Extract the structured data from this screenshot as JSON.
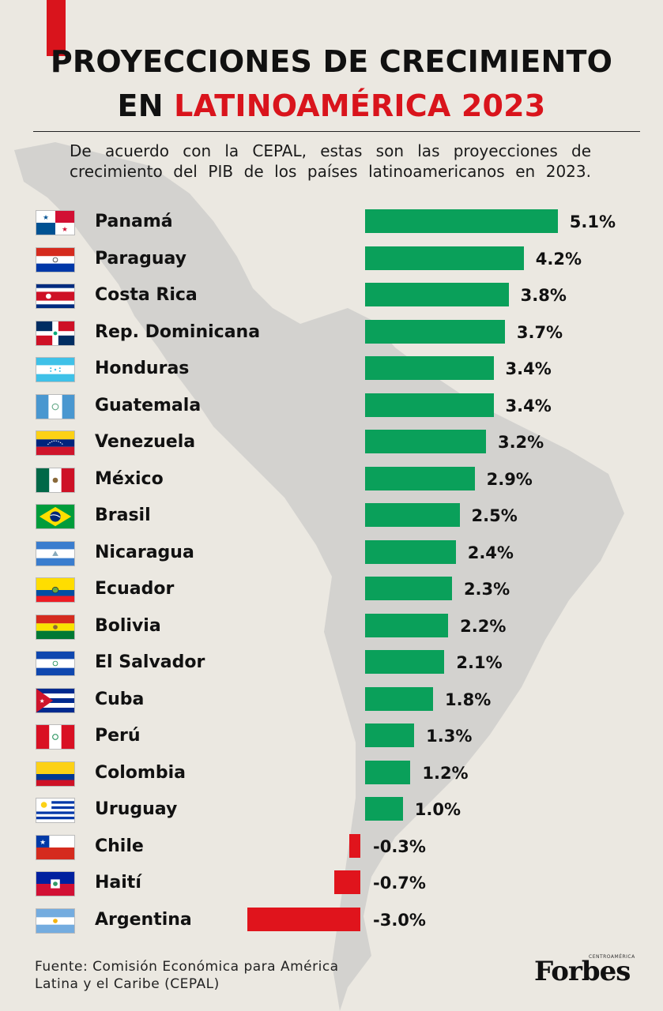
{
  "title": {
    "line1": "PROYECCIONES DE CRECIMIENTO",
    "line2_prefix": "EN",
    "line2_accent": "LATINOAMÉRICA 2023"
  },
  "subtitle": "De acuerdo con la CEPAL, estas son las proyecciones de crecimiento del PIB de los países latinoamericanos en 2023.",
  "source": {
    "line1": "Fuente: Comisión Económica para América",
    "line2": "Latina y el Caribe (CEPAL)"
  },
  "logo": {
    "text": "Forbes",
    "sub": "CENTROAMÉRICA"
  },
  "colors": {
    "positive": "#0aa05a",
    "negative": "#e0141c",
    "accent": "#d9141c"
  },
  "chart_data": {
    "type": "bar",
    "orientation": "horizontal",
    "categories": [
      "Panamá",
      "Paraguay",
      "Costa Rica",
      "Rep. Dominicana",
      "Honduras",
      "Guatemala",
      "Venezuela",
      "México",
      "Brasil",
      "Nicaragua",
      "Ecuador",
      "Bolivia",
      "El Salvador",
      "Cuba",
      "Perú",
      "Colombia",
      "Uruguay",
      "Chile",
      "Haití",
      "Argentina"
    ],
    "values": [
      5.1,
      4.2,
      3.8,
      3.7,
      3.4,
      3.4,
      3.2,
      2.9,
      2.5,
      2.4,
      2.3,
      2.2,
      2.1,
      1.8,
      1.3,
      1.2,
      1.0,
      -0.3,
      -0.7,
      -3.0
    ],
    "labels": [
      "5.1%",
      "4.2%",
      "3.8%",
      "3.7%",
      "3.4%",
      "3.4%",
      "3.2%",
      "2.9%",
      "2.5%",
      "2.4%",
      "2.3%",
      "2.2%",
      "2.1%",
      "1.8%",
      "1.3%",
      "1.2%",
      "1.0%",
      "-0.3%",
      "-0.7%",
      "-3.0%"
    ],
    "flags": [
      "panama-flag-icon",
      "paraguay-flag-icon",
      "costa-rica-flag-icon",
      "dominican-republic-flag-icon",
      "honduras-flag-icon",
      "guatemala-flag-icon",
      "venezuela-flag-icon",
      "mexico-flag-icon",
      "brazil-flag-icon",
      "nicaragua-flag-icon",
      "ecuador-flag-icon",
      "bolivia-flag-icon",
      "el-salvador-flag-icon",
      "cuba-flag-icon",
      "peru-flag-icon",
      "colombia-flag-icon",
      "uruguay-flag-icon",
      "chile-flag-icon",
      "haiti-flag-icon",
      "argentina-flag-icon"
    ],
    "unit": "%",
    "title": "PROYECCIONES DE CRECIMIENTO EN LATINOAMÉRICA 2023",
    "xlabel": "",
    "ylabel": "",
    "grid": false,
    "legend": "none"
  }
}
